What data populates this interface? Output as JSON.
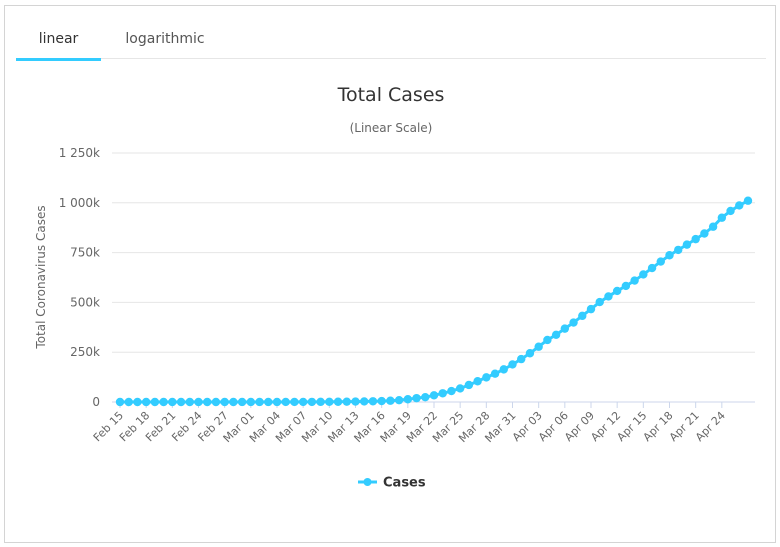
{
  "tabs": [
    {
      "label": "linear",
      "active": true
    },
    {
      "label": "logarithmic",
      "active": false
    }
  ],
  "colors": {
    "series": "#33ccff",
    "grid": "#e6e6e6",
    "accent": "#33ccff"
  },
  "chart_data": {
    "type": "line",
    "title": "Total Cases",
    "subtitle": "(Linear Scale)",
    "ylabel": "Total Coronavirus Cases",
    "ylim": [
      0,
      1250000
    ],
    "yticks": [
      0,
      250000,
      500000,
      750000,
      1000000,
      1250000
    ],
    "ytick_labels": [
      "0",
      "250k",
      "500k",
      "750k",
      "1 000k",
      "1 250k"
    ],
    "xtick_labels": [
      "Feb 15",
      "Feb 18",
      "Feb 21",
      "Feb 24",
      "Feb 27",
      "Mar 01",
      "Mar 04",
      "Mar 07",
      "Mar 10",
      "Mar 13",
      "Mar 16",
      "Mar 19",
      "Mar 22",
      "Mar 25",
      "Mar 28",
      "Mar 31",
      "Apr 03",
      "Apr 06",
      "Apr 09",
      "Apr 12",
      "Apr 15",
      "Apr 18",
      "Apr 21",
      "Apr 24"
    ],
    "legend": "bottom-center",
    "series": [
      {
        "name": "Cases",
        "x": [
          "Feb 15",
          "Feb 16",
          "Feb 17",
          "Feb 18",
          "Feb 19",
          "Feb 20",
          "Feb 21",
          "Feb 22",
          "Feb 23",
          "Feb 24",
          "Feb 25",
          "Feb 26",
          "Feb 27",
          "Feb 28",
          "Feb 29",
          "Mar 01",
          "Mar 02",
          "Mar 03",
          "Mar 04",
          "Mar 05",
          "Mar 06",
          "Mar 07",
          "Mar 08",
          "Mar 09",
          "Mar 10",
          "Mar 11",
          "Mar 12",
          "Mar 13",
          "Mar 14",
          "Mar 15",
          "Mar 16",
          "Mar 17",
          "Mar 18",
          "Mar 19",
          "Mar 20",
          "Mar 21",
          "Mar 22",
          "Mar 23",
          "Mar 24",
          "Mar 25",
          "Mar 26",
          "Mar 27",
          "Mar 28",
          "Mar 29",
          "Mar 30",
          "Mar 31",
          "Apr 01",
          "Apr 02",
          "Apr 03",
          "Apr 04",
          "Apr 05",
          "Apr 06",
          "Apr 07",
          "Apr 08",
          "Apr 09",
          "Apr 10",
          "Apr 11",
          "Apr 12",
          "Apr 13",
          "Apr 14",
          "Apr 15",
          "Apr 16",
          "Apr 17",
          "Apr 18",
          "Apr 19",
          "Apr 20",
          "Apr 21",
          "Apr 22",
          "Apr 23",
          "Apr 24",
          "Apr 25",
          "Apr 26",
          "Apr 27"
        ],
        "values": [
          15,
          15,
          15,
          15,
          15,
          15,
          15,
          35,
          35,
          53,
          57,
          60,
          60,
          62,
          70,
          76,
          100,
          124,
          158,
          221,
          319,
          435,
          541,
          704,
          994,
          1301,
          1630,
          2183,
          2770,
          3613,
          4596,
          6344,
          9197,
          13779,
          19367,
          24192,
          33592,
          43781,
          54856,
          68211,
          85435,
          104126,
          123578,
          142004,
          163786,
          188592,
          215344,
          244678,
          277467,
          311357,
          337310,
          368376,
          398809,
          432438,
          466299,
          501680,
          529951,
          557571,
          582594,
          609696,
          640291,
          672303,
          704892,
          736637,
          763536,
          790024,
          817624,
          845865,
          879883,
          925038,
          959175,
          986836,
          1010356
        ]
      }
    ]
  }
}
